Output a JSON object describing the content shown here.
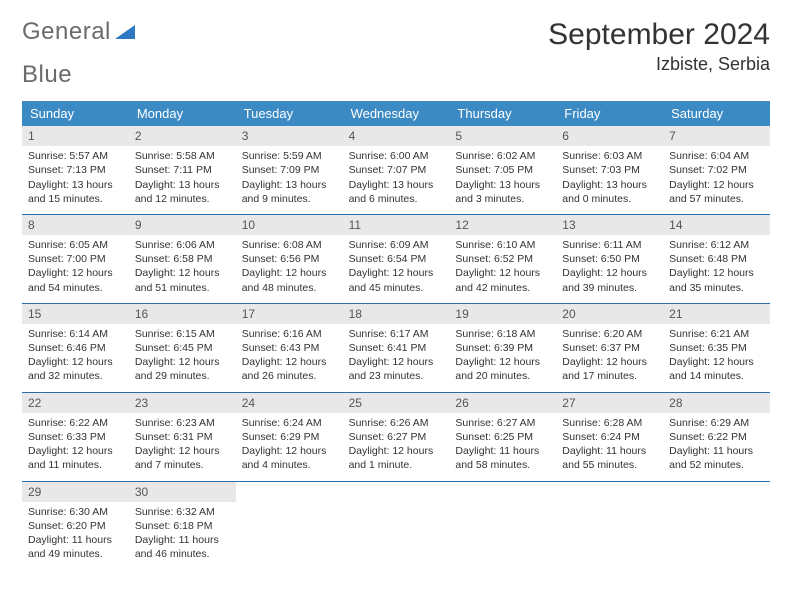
{
  "logo": {
    "text_a": "General",
    "text_b": "Blue"
  },
  "title": "September 2024",
  "location": "Izbiste, Serbia",
  "colors": {
    "header_bg": "#3b8ac4",
    "header_text": "#ffffff",
    "daynum_bg": "#e8e8e8",
    "row_border": "#2a6ca8",
    "body_text": "#333333",
    "logo_gray": "#6b6b6b",
    "logo_blue": "#2f78c4"
  },
  "typography": {
    "title_fontsize": 30,
    "location_fontsize": 18,
    "weekday_fontsize": 13,
    "cell_fontsize": 10.5
  },
  "layout": {
    "columns": 7
  },
  "weekdays": [
    "Sunday",
    "Monday",
    "Tuesday",
    "Wednesday",
    "Thursday",
    "Friday",
    "Saturday"
  ],
  "days": [
    {
      "n": "1",
      "sunrise": "5:57 AM",
      "sunset": "7:13 PM",
      "daylight": "13 hours and 15 minutes."
    },
    {
      "n": "2",
      "sunrise": "5:58 AM",
      "sunset": "7:11 PM",
      "daylight": "13 hours and 12 minutes."
    },
    {
      "n": "3",
      "sunrise": "5:59 AM",
      "sunset": "7:09 PM",
      "daylight": "13 hours and 9 minutes."
    },
    {
      "n": "4",
      "sunrise": "6:00 AM",
      "sunset": "7:07 PM",
      "daylight": "13 hours and 6 minutes."
    },
    {
      "n": "5",
      "sunrise": "6:02 AM",
      "sunset": "7:05 PM",
      "daylight": "13 hours and 3 minutes."
    },
    {
      "n": "6",
      "sunrise": "6:03 AM",
      "sunset": "7:03 PM",
      "daylight": "13 hours and 0 minutes."
    },
    {
      "n": "7",
      "sunrise": "6:04 AM",
      "sunset": "7:02 PM",
      "daylight": "12 hours and 57 minutes."
    },
    {
      "n": "8",
      "sunrise": "6:05 AM",
      "sunset": "7:00 PM",
      "daylight": "12 hours and 54 minutes."
    },
    {
      "n": "9",
      "sunrise": "6:06 AM",
      "sunset": "6:58 PM",
      "daylight": "12 hours and 51 minutes."
    },
    {
      "n": "10",
      "sunrise": "6:08 AM",
      "sunset": "6:56 PM",
      "daylight": "12 hours and 48 minutes."
    },
    {
      "n": "11",
      "sunrise": "6:09 AM",
      "sunset": "6:54 PM",
      "daylight": "12 hours and 45 minutes."
    },
    {
      "n": "12",
      "sunrise": "6:10 AM",
      "sunset": "6:52 PM",
      "daylight": "12 hours and 42 minutes."
    },
    {
      "n": "13",
      "sunrise": "6:11 AM",
      "sunset": "6:50 PM",
      "daylight": "12 hours and 39 minutes."
    },
    {
      "n": "14",
      "sunrise": "6:12 AM",
      "sunset": "6:48 PM",
      "daylight": "12 hours and 35 minutes."
    },
    {
      "n": "15",
      "sunrise": "6:14 AM",
      "sunset": "6:46 PM",
      "daylight": "12 hours and 32 minutes."
    },
    {
      "n": "16",
      "sunrise": "6:15 AM",
      "sunset": "6:45 PM",
      "daylight": "12 hours and 29 minutes."
    },
    {
      "n": "17",
      "sunrise": "6:16 AM",
      "sunset": "6:43 PM",
      "daylight": "12 hours and 26 minutes."
    },
    {
      "n": "18",
      "sunrise": "6:17 AM",
      "sunset": "6:41 PM",
      "daylight": "12 hours and 23 minutes."
    },
    {
      "n": "19",
      "sunrise": "6:18 AM",
      "sunset": "6:39 PM",
      "daylight": "12 hours and 20 minutes."
    },
    {
      "n": "20",
      "sunrise": "6:20 AM",
      "sunset": "6:37 PM",
      "daylight": "12 hours and 17 minutes."
    },
    {
      "n": "21",
      "sunrise": "6:21 AM",
      "sunset": "6:35 PM",
      "daylight": "12 hours and 14 minutes."
    },
    {
      "n": "22",
      "sunrise": "6:22 AM",
      "sunset": "6:33 PM",
      "daylight": "12 hours and 11 minutes."
    },
    {
      "n": "23",
      "sunrise": "6:23 AM",
      "sunset": "6:31 PM",
      "daylight": "12 hours and 7 minutes."
    },
    {
      "n": "24",
      "sunrise": "6:24 AM",
      "sunset": "6:29 PM",
      "daylight": "12 hours and 4 minutes."
    },
    {
      "n": "25",
      "sunrise": "6:26 AM",
      "sunset": "6:27 PM",
      "daylight": "12 hours and 1 minute."
    },
    {
      "n": "26",
      "sunrise": "6:27 AM",
      "sunset": "6:25 PM",
      "daylight": "11 hours and 58 minutes."
    },
    {
      "n": "27",
      "sunrise": "6:28 AM",
      "sunset": "6:24 PM",
      "daylight": "11 hours and 55 minutes."
    },
    {
      "n": "28",
      "sunrise": "6:29 AM",
      "sunset": "6:22 PM",
      "daylight": "11 hours and 52 minutes."
    },
    {
      "n": "29",
      "sunrise": "6:30 AM",
      "sunset": "6:20 PM",
      "daylight": "11 hours and 49 minutes."
    },
    {
      "n": "30",
      "sunrise": "6:32 AM",
      "sunset": "6:18 PM",
      "daylight": "11 hours and 46 minutes."
    }
  ],
  "labels": {
    "sunrise_prefix": "Sunrise: ",
    "sunset_prefix": "Sunset: ",
    "daylight_prefix": "Daylight: "
  }
}
